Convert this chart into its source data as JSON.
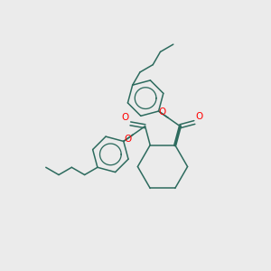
{
  "background_color": "#ebebeb",
  "bond_color": "#2d6b5e",
  "oxygen_color": "#ff0000",
  "figsize": [
    3.0,
    3.0
  ],
  "dpi": 100,
  "xlim": [
    0,
    10
  ],
  "ylim": [
    0,
    10
  ]
}
